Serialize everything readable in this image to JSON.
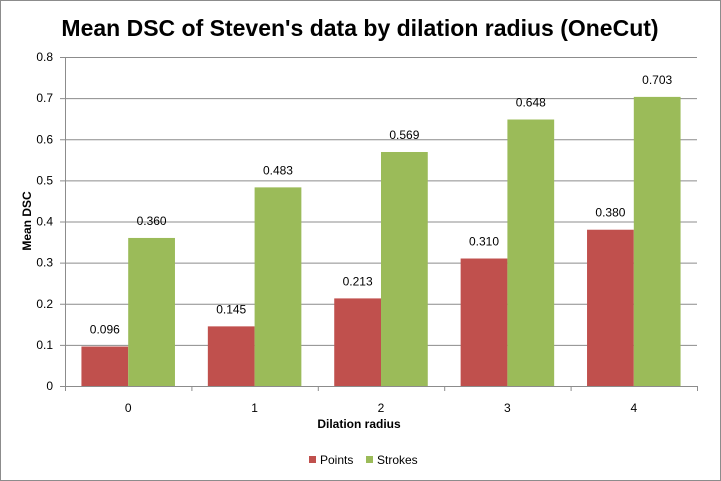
{
  "chart_data": {
    "type": "bar",
    "title": "Mean DSC of Steven's data by dilation radius (OneCut)",
    "xlabel": "Dilation  radius",
    "ylabel": "Mean DSC",
    "categories": [
      "0",
      "1",
      "2",
      "3",
      "4"
    ],
    "series": [
      {
        "name": "Points",
        "color": "#c0504d",
        "values": [
          0.096,
          0.145,
          0.213,
          0.31,
          0.38
        ],
        "labels": [
          "0.096",
          "0.145",
          "0.213",
          "0.310",
          "0.380"
        ]
      },
      {
        "name": "Strokes",
        "color": "#9bbb59",
        "values": [
          0.36,
          0.483,
          0.569,
          0.648,
          0.703
        ],
        "labels": [
          "0.360",
          "0.483",
          "0.569",
          "0.648",
          "0.703"
        ]
      }
    ],
    "ylim": [
      0,
      0.8
    ],
    "yticks": [
      "0",
      "0.1",
      "0.2",
      "0.3",
      "0.4",
      "0.5",
      "0.6",
      "0.7",
      "0.8"
    ],
    "ytick_values": [
      0,
      0.1,
      0.2,
      0.3,
      0.4,
      0.5,
      0.6,
      0.7,
      0.8
    ],
    "grid": true,
    "legend_position": "bottom-center",
    "plot_background": "#ffffff",
    "gridline_color": "#8c8c8c"
  }
}
